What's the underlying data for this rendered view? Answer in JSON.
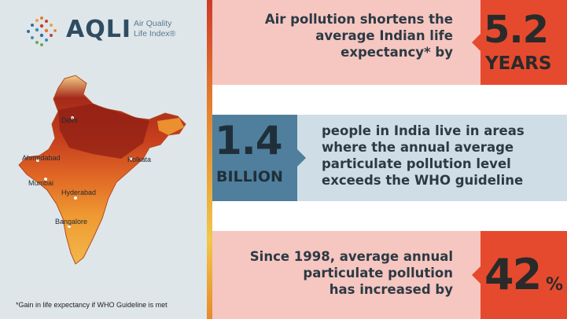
{
  "brand": {
    "name": "AQLI",
    "subtitle_line1": "Air Quality",
    "subtitle_line2": "Life Index®"
  },
  "map": {
    "cities": [
      "Delhi",
      "Ahmedabad",
      "Kolkata",
      "Mumbai",
      "Hyderabad",
      "Bangalore"
    ]
  },
  "footnote": "*Gain in life expectancy if WHO Guideline is met",
  "stats": [
    {
      "text_lines": [
        "Air pollution shortens the",
        "average Indian life",
        "expectancy* by"
      ],
      "value": "5.2",
      "unit": "YEARS"
    },
    {
      "value": "1.4",
      "unit": "BILLION",
      "text_lines": [
        "people in India live in areas",
        "where the annual average",
        "particulate pollution level",
        "exceeds the WHO guideline"
      ]
    },
    {
      "text_lines": [
        "Since 1998, average annual",
        "particulate pollution",
        "has increased by"
      ],
      "value": "42",
      "unit": "%"
    }
  ],
  "colors": {
    "accent_red": "#e64a2e",
    "accent_blue": "#4f7f9c",
    "panel_pink": "#f6c6c0",
    "panel_blue": "#cfdde6",
    "left_bg": "#dfe6ea"
  }
}
